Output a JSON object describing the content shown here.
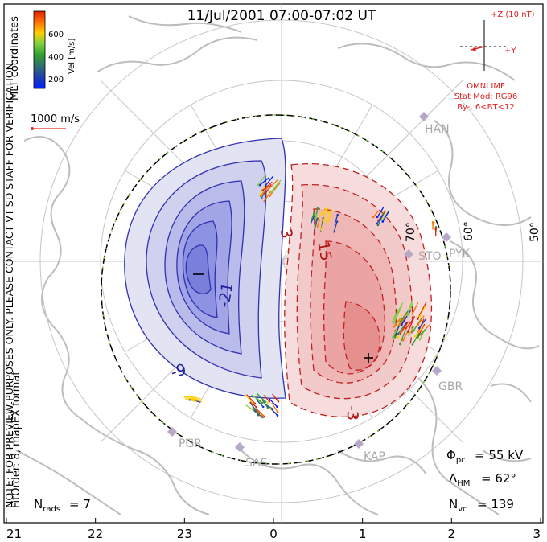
{
  "title": "11/Jul/2001 07:00-07:02 UT",
  "colorbar": {
    "label": "Vel [m/s]",
    "ticks": [
      "600",
      "400",
      "200"
    ],
    "colors": [
      "#e02000",
      "#ff7000",
      "#ffd000",
      "#80d040",
      "#30a030",
      "#2f7070",
      "#2040b0",
      "#0020ff"
    ]
  },
  "scale_vector": {
    "label": "1000 m/s"
  },
  "side_note": "NOTE: FOR PREVIEW PURPOSES ONLY. PLEASE CONTACT VT-SD STAFF FOR VERIFICATION.",
  "coords_label": "MLT coordinates",
  "fit_label": "FitOrder: 8, mapEX format",
  "imf": {
    "scale": "+Z (10 nT)",
    "axis": "+Y",
    "model_lines": [
      "OMNI IMF",
      "Stat Mod: RG96",
      "By-, 6<BT<12"
    ]
  },
  "stations": [
    "HAN",
    "STO",
    "PYK",
    "GBR",
    "KAP",
    "SAS",
    "PGR"
  ],
  "lat_labels": [
    "70°",
    "60°",
    "50°"
  ],
  "contour_labels": [
    "-21",
    "-9",
    "3",
    "15",
    "-3"
  ],
  "stats": {
    "phi_pc": "= 55 kV",
    "lambda_hm": "= 62°",
    "nvc": "= 139",
    "nrads": "= 7"
  },
  "mlt_ticks": [
    "21",
    "22",
    "23",
    "0",
    "1",
    "2",
    "3"
  ]
}
